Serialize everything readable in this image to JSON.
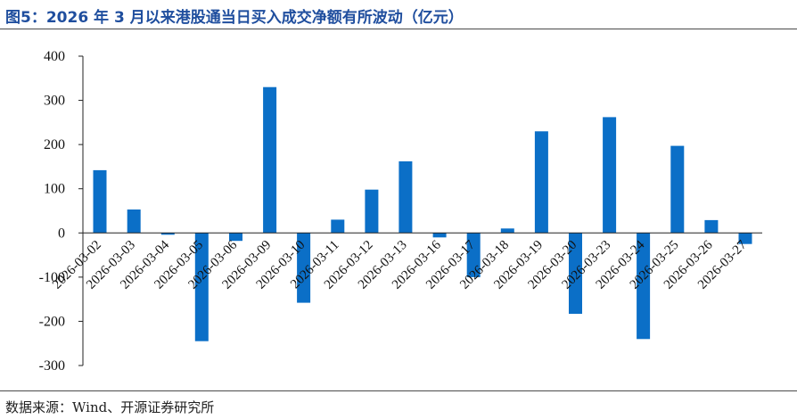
{
  "title": "图5：2026 年 3 月以来港股通当日买入成交净额有所波动（亿元）",
  "source": "数据来源：Wind、开源证券研究所",
  "colors": {
    "bar": "#0b6fc7",
    "title": "#1f4e9e",
    "axis": "#222222"
  },
  "chart_data": {
    "type": "bar",
    "categories": [
      "2026-03-02",
      "2026-03-03",
      "2026-03-04",
      "2026-03-05",
      "2026-03-06",
      "2026-03-09",
      "2026-03-10",
      "2026-03-11",
      "2026-03-12",
      "2026-03-13",
      "2026-03-16",
      "2026-03-17",
      "2026-03-18",
      "2026-03-19",
      "2026-03-20",
      "2026-03-23",
      "2026-03-24",
      "2026-03-25",
      "2026-03-26",
      "2026-03-27"
    ],
    "values": [
      142,
      53,
      -4,
      -245,
      -18,
      330,
      -158,
      30,
      98,
      162,
      -10,
      -100,
      10,
      230,
      -183,
      262,
      -240,
      197,
      29,
      -25
    ],
    "ylim": [
      -300,
      400
    ],
    "yticks": [
      400,
      300,
      200,
      100,
      0,
      -100,
      -200,
      -300
    ],
    "grid": false
  }
}
